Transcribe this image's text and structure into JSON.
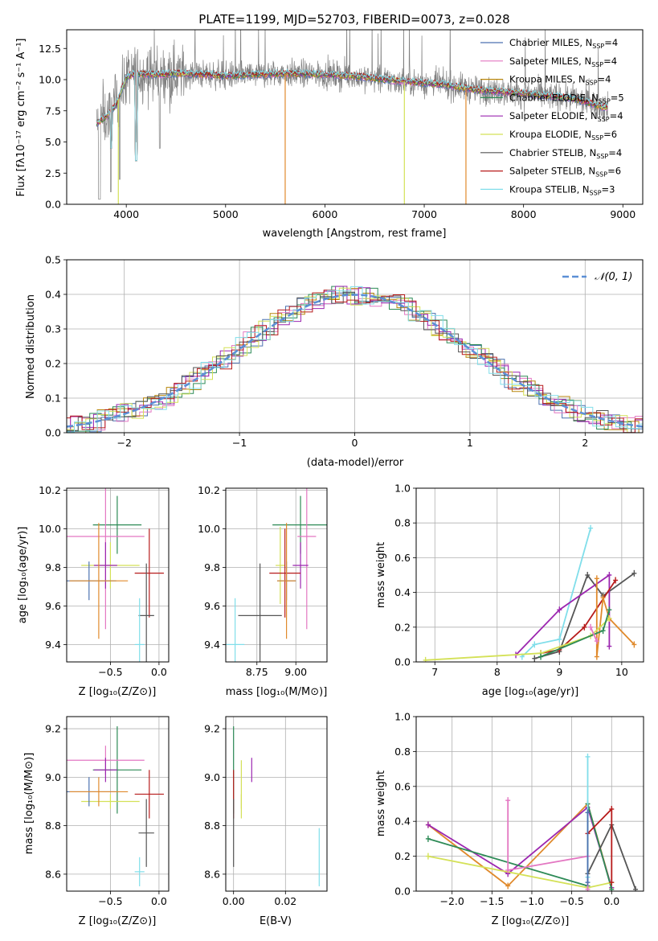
{
  "chart_data": [
    {
      "id": "spectrum",
      "type": "line",
      "title": "PLATE=1199, MJD=52703, FIBERID=0073, z=0.028",
      "xlabel": "wavelength [Angstrom, rest frame]",
      "ylabel": "Flux [fλ10⁻¹⁷ erg cm⁻² s⁻¹ A⁻¹]",
      "xlim": [
        3400,
        9200
      ],
      "ylim": [
        0,
        14
      ],
      "xticks": [
        "4000",
        "5000",
        "6000",
        "7000",
        "8000",
        "9000"
      ],
      "yticks": [
        "0.0",
        "2.5",
        "5.0",
        "7.5",
        "10.0",
        "12.5"
      ],
      "legend_position": "top-right",
      "series": [
        {
          "name": "Chabrier MILES, N",
          "sub": "SSP",
          "suffix": "=4",
          "color": "#4c72b0"
        },
        {
          "name": "Salpeter MILES, N",
          "sub": "SSP",
          "suffix": "=4",
          "color": "#e377c2"
        },
        {
          "name": "Kroupa MILES, N",
          "sub": "SSP",
          "suffix": "=4",
          "color": "#b8860b"
        },
        {
          "name": "Chabrier ELODIE, N",
          "sub": "SSP",
          "suffix": "=5",
          "color": "#2e8b57"
        },
        {
          "name": "Salpeter ELODIE, N",
          "sub": "SSP",
          "suffix": "=4",
          "color": "#9c27b0"
        },
        {
          "name": "Kroupa ELODIE, N",
          "sub": "SSP",
          "suffix": "=6",
          "color": "#d4e157"
        },
        {
          "name": "Chabrier STELIB, N",
          "sub": "SSP",
          "suffix": "=4",
          "color": "#555555"
        },
        {
          "name": "Salpeter STELIB, N",
          "sub": "SSP",
          "suffix": "=6",
          "color": "#b71c1c"
        },
        {
          "name": "Kroupa STELIB, N",
          "sub": "SSP",
          "suffix": "=3",
          "color": "#80deea"
        }
      ],
      "data_color": "#808080",
      "continuum": {
        "x": [
          3700,
          3800,
          3900,
          4000,
          4100,
          4300,
          4500,
          4800,
          5000,
          5300,
          5600,
          6000,
          6300,
          6600,
          6900,
          7200,
          7500,
          8000,
          8500,
          8800
        ],
        "y": [
          6.5,
          7.0,
          8.0,
          10.2,
          10.5,
          10.4,
          10.5,
          10.4,
          10.3,
          10.4,
          10.5,
          10.4,
          10.3,
          10.0,
          9.8,
          9.6,
          9.2,
          8.9,
          8.5,
          7.8
        ]
      }
    },
    {
      "id": "residuals",
      "type": "step",
      "xlabel": "(data-model)/error",
      "ylabel": "Normed distribution",
      "xlim": [
        -2.5,
        2.5
      ],
      "ylim": [
        0,
        0.5
      ],
      "xticks": [
        "−2",
        "−1",
        "0",
        "1",
        "2"
      ],
      "yticks": [
        "0.0",
        "0.1",
        "0.2",
        "0.3",
        "0.4",
        "0.5"
      ],
      "reference_label": "𝒩(0, 1)",
      "reference_color": "#5b8fd6",
      "bin_width": 0.1
    },
    {
      "id": "age-vs-Z",
      "type": "scatter",
      "xlabel": "Z [log₁₀(Z/Z⊙)]",
      "ylabel": "age  [log₁₀(age/yr)]",
      "xlim": [
        -0.95,
        0.1
      ],
      "ylim": [
        9.31,
        10.21
      ],
      "xticks": [
        "−0.5",
        "0.0"
      ],
      "yticks": [
        "9.4",
        "9.6",
        "9.8",
        "10.0",
        "10.2"
      ],
      "crosses": [
        {
          "x": -0.43,
          "dx": 0.25,
          "y": 10.02,
          "dy": 0.15,
          "color": "#2e8b57"
        },
        {
          "x": -0.55,
          "dx": 0.4,
          "y": 9.96,
          "dy": 0.48,
          "color": "#e377c2"
        },
        {
          "x": -0.5,
          "dx": 0.3,
          "y": 9.81,
          "dy": 0.12,
          "color": "#d4e157"
        },
        {
          "x": -0.55,
          "dx": 0.12,
          "y": 9.81,
          "dy": 0.12,
          "color": "#9c27b0"
        },
        {
          "x": -0.1,
          "dx": 0.15,
          "y": 9.77,
          "dy": 0.23,
          "color": "#b71c1c"
        },
        {
          "x": -0.72,
          "dx": 0.28,
          "y": 9.73,
          "dy": 0.1,
          "color": "#4c72b0"
        },
        {
          "x": -0.62,
          "dx": 0.3,
          "y": 9.73,
          "dy": 0.3,
          "color": "#e08a2c"
        },
        {
          "x": -0.13,
          "dx": 0.08,
          "y": 9.55,
          "dy": 0.27,
          "color": "#555555"
        },
        {
          "x": -0.2,
          "dx": 0.05,
          "y": 9.4,
          "dy": 0.24,
          "color": "#80deea"
        }
      ]
    },
    {
      "id": "age-vs-mass",
      "type": "scatter",
      "xlabel": "mass [log₁₀(M/M⊙)]",
      "ylabel": "",
      "xlim": [
        8.55,
        9.2
      ],
      "ylim": [
        9.31,
        10.21
      ],
      "xticks": [
        "8.75",
        "9.00"
      ],
      "yticks": [
        "9.4",
        "9.6",
        "9.8",
        "10.0",
        "10.2"
      ],
      "crosses": [
        {
          "x": 9.03,
          "dx": 0.18,
          "y": 10.02,
          "dy": 0.15,
          "color": "#2e8b57"
        },
        {
          "x": 9.07,
          "dx": 0.06,
          "y": 9.96,
          "dy": 0.48,
          "color": "#e377c2"
        },
        {
          "x": 8.9,
          "dx": 0.03,
          "y": 9.81,
          "dy": 0.2,
          "color": "#d4e157"
        },
        {
          "x": 9.03,
          "dx": 0.05,
          "y": 9.81,
          "dy": 0.12,
          "color": "#9c27b0"
        },
        {
          "x": 8.93,
          "dx": 0.1,
          "y": 9.77,
          "dy": 0.23,
          "color": "#b71c1c"
        },
        {
          "x": 8.94,
          "dx": 0.06,
          "y": 9.73,
          "dy": 0.1,
          "color": "#4c72b0"
        },
        {
          "x": 8.94,
          "dx": 0.06,
          "y": 9.73,
          "dy": 0.3,
          "color": "#e08a2c"
        },
        {
          "x": 8.77,
          "dx": 0.14,
          "y": 9.55,
          "dy": 0.27,
          "color": "#555555"
        },
        {
          "x": 8.61,
          "dx": 0.06,
          "y": 9.4,
          "dy": 0.24,
          "color": "#80deea"
        }
      ]
    },
    {
      "id": "massweight-vs-age",
      "type": "line",
      "xlabel": "age  [log₁₀(age/yr)]",
      "ylabel": "mass weight",
      "xlim": [
        6.7,
        10.35
      ],
      "ylim": [
        0,
        1
      ],
      "xticks": [
        "7",
        "8",
        "9",
        "10"
      ],
      "yticks": [
        "0.0",
        "0.2",
        "0.4",
        "0.6",
        "0.8",
        "1.0"
      ],
      "series": [
        {
          "color": "#80deea",
          "x": [
            8.4,
            8.6,
            9.0,
            9.5
          ],
          "y": [
            0.03,
            0.1,
            0.13,
            0.77
          ]
        },
        {
          "color": "#555555",
          "x": [
            8.6,
            9.0,
            9.45,
            9.7,
            10.2
          ],
          "y": [
            0.02,
            0.06,
            0.5,
            0.38,
            0.51
          ]
        },
        {
          "color": "#9c27b0",
          "x": [
            8.3,
            9.0,
            9.8,
            9.8
          ],
          "y": [
            0.04,
            0.3,
            0.5,
            0.09
          ]
        },
        {
          "color": "#b71c1c",
          "x": [
            8.7,
            9.0,
            9.4,
            9.9
          ],
          "y": [
            0.05,
            0.07,
            0.2,
            0.47
          ]
        },
        {
          "color": "#e08a2c",
          "x": [
            9.6,
            9.6,
            9.7,
            9.8,
            10.2
          ],
          "y": [
            0.48,
            0.03,
            0.37,
            0.25,
            0.1
          ]
        },
        {
          "color": "#d4e157",
          "x": [
            6.85,
            8.7,
            9.5,
            9.8
          ],
          "y": [
            0.01,
            0.05,
            0.15,
            0.25
          ]
        },
        {
          "color": "#2e8b57",
          "x": [
            8.7,
            9.7,
            9.8
          ],
          "y": [
            0.03,
            0.18,
            0.3
          ]
        },
        {
          "color": "#e377c2",
          "x": [
            9.5,
            9.6
          ],
          "y": [
            0.2,
            0.12
          ]
        }
      ]
    },
    {
      "id": "mass-vs-Z",
      "type": "scatter",
      "xlabel": "Z [log₁₀(Z/Z⊙)]",
      "ylabel": "mass [log₁₀(M/M⊙)]",
      "xlim": [
        -0.95,
        0.1
      ],
      "ylim": [
        8.53,
        9.25
      ],
      "xticks": [
        "−0.5",
        "0.0"
      ],
      "yticks": [
        "8.6",
        "8.8",
        "9.0",
        "9.2"
      ],
      "crosses": [
        {
          "x": -0.43,
          "dx": 0.25,
          "y": 9.03,
          "dy": 0.18,
          "color": "#2e8b57"
        },
        {
          "x": -0.55,
          "dx": 0.4,
          "y": 9.07,
          "dy": 0.06,
          "color": "#e377c2"
        },
        {
          "x": -0.5,
          "dx": 0.3,
          "y": 8.9,
          "dy": 0.03,
          "color": "#d4e157"
        },
        {
          "x": -0.55,
          "dx": 0.12,
          "y": 9.03,
          "dy": 0.05,
          "color": "#9c27b0"
        },
        {
          "x": -0.1,
          "dx": 0.15,
          "y": 8.93,
          "dy": 0.1,
          "color": "#b71c1c"
        },
        {
          "x": -0.72,
          "dx": 0.28,
          "y": 8.94,
          "dy": 0.06,
          "color": "#4c72b0"
        },
        {
          "x": -0.62,
          "dx": 0.3,
          "y": 8.94,
          "dy": 0.06,
          "color": "#e08a2c"
        },
        {
          "x": -0.13,
          "dx": 0.08,
          "y": 8.77,
          "dy": 0.14,
          "color": "#555555"
        },
        {
          "x": -0.2,
          "dx": 0.05,
          "y": 8.61,
          "dy": 0.06,
          "color": "#80deea"
        }
      ]
    },
    {
      "id": "mass-vs-EBV",
      "type": "scatter",
      "xlabel": "E(B-V)",
      "ylabel": "",
      "xlim": [
        -0.003,
        0.036
      ],
      "ylim": [
        8.53,
        9.25
      ],
      "xticks": [
        "0.00",
        "0.02"
      ],
      "yticks": [
        "8.6",
        "8.8",
        "9.0",
        "9.2"
      ],
      "crosses": [
        {
          "x": 0.0,
          "dx": 0,
          "y": 9.03,
          "dy": 0.18,
          "color": "#2e8b57"
        },
        {
          "x": 0.0,
          "dx": 0,
          "y": 8.93,
          "dy": 0.1,
          "color": "#b71c1c"
        },
        {
          "x": 0.0,
          "dx": 0,
          "y": 8.77,
          "dy": 0.14,
          "color": "#555555"
        },
        {
          "x": 0.003,
          "dx": 0,
          "y": 8.9,
          "dy": 0.03,
          "color": "#d4e157"
        },
        {
          "x": 0.003,
          "dx": 0,
          "y": 8.95,
          "dy": 0.12,
          "color": "#d4e157"
        },
        {
          "x": 0.007,
          "dx": 0,
          "y": 9.03,
          "dy": 0.05,
          "color": "#9c27b0"
        },
        {
          "x": 0.033,
          "dx": 0,
          "y": 8.67,
          "dy": 0.12,
          "color": "#80deea"
        }
      ]
    },
    {
      "id": "massweight-vs-Z",
      "type": "line",
      "xlabel": "Z [log₁₀(Z/Z⊙)]",
      "ylabel": "mass weight",
      "xlim": [
        -2.45,
        0.4
      ],
      "ylim": [
        0,
        1
      ],
      "xticks": [
        "−2.0",
        "−1.5",
        "−1.0",
        "−0.5",
        "0.0"
      ],
      "yticks": [
        "0.0",
        "0.2",
        "0.4",
        "0.6",
        "0.8",
        "1.0"
      ],
      "series": [
        {
          "color": "#e08a2c",
          "x": [
            -2.3,
            -1.3,
            -0.3,
            0.0
          ],
          "y": [
            0.38,
            0.03,
            0.5,
            0.02
          ]
        },
        {
          "color": "#9c27b0",
          "x": [
            -2.3,
            -1.3,
            -0.3,
            0.0
          ],
          "y": [
            0.38,
            0.1,
            0.48,
            0.02
          ]
        },
        {
          "color": "#2e8b57",
          "x": [
            -2.3,
            -0.3,
            -0.3,
            0.0
          ],
          "y": [
            0.3,
            0.03,
            0.5,
            0.01
          ]
        },
        {
          "color": "#d4e157",
          "x": [
            -2.3,
            -0.3,
            0.0
          ],
          "y": [
            0.2,
            0.02,
            0.05
          ]
        },
        {
          "color": "#e377c2",
          "x": [
            -1.3,
            -1.3,
            -0.3,
            -0.3
          ],
          "y": [
            0.52,
            0.12,
            0.2,
            0.01
          ]
        },
        {
          "color": "#555555",
          "x": [
            -0.3,
            0.0,
            0.3
          ],
          "y": [
            0.1,
            0.38,
            0.01
          ]
        },
        {
          "color": "#b71c1c",
          "x": [
            -0.3,
            0.0,
            0.0
          ],
          "y": [
            0.33,
            0.47,
            0.05
          ]
        },
        {
          "color": "#80deea",
          "x": [
            -0.3,
            -0.3
          ],
          "y": [
            0.77,
            0.08
          ]
        },
        {
          "color": "#4c72b0",
          "x": [
            -0.3,
            -0.3
          ],
          "y": [
            0.45,
            0.05
          ]
        }
      ]
    }
  ]
}
